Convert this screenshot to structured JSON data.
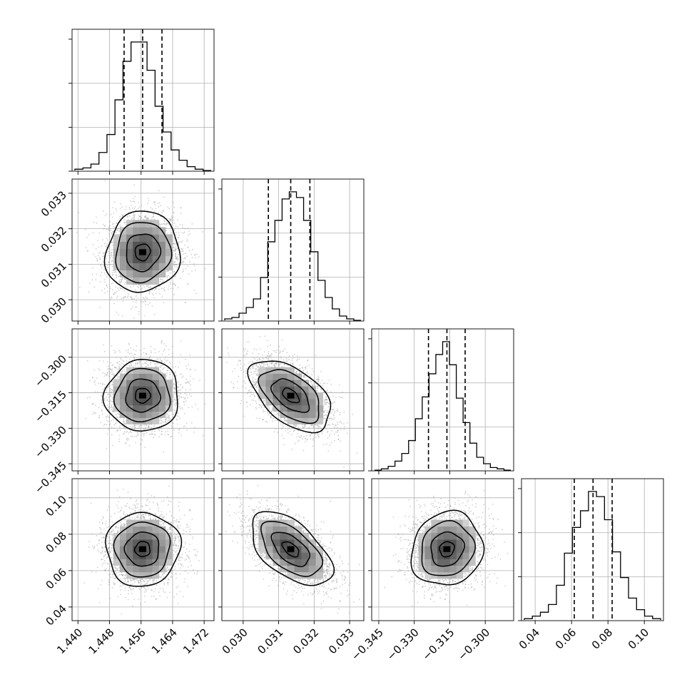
{
  "chart_data": {
    "type": "corner",
    "parameters": 4,
    "grid": true,
    "quantile_lines": "dashed",
    "axes": [
      {
        "range": [
          1.4385,
          1.4745
        ],
        "ticks": [
          1.44,
          1.448,
          1.456,
          1.464,
          1.472
        ],
        "tick_labels": [
          "1.440",
          "1.448",
          "1.456",
          "1.464",
          "1.472"
        ],
        "quantiles": [
          1.4517,
          1.4564,
          1.4613
        ]
      },
      {
        "range": [
          0.0294,
          0.0334
        ],
        "ticks": [
          0.03,
          0.031,
          0.032,
          0.033
        ],
        "tick_labels": [
          "0.030",
          "0.031",
          "0.032",
          "0.033"
        ],
        "quantiles": [
          0.03071,
          0.03134,
          0.03188
        ]
      },
      {
        "range": [
          -0.348,
          -0.288
        ],
        "ticks": [
          -0.345,
          -0.33,
          -0.315,
          -0.3
        ],
        "tick_labels": [
          "−0.345",
          "−0.330",
          "−0.315",
          "−0.300"
        ],
        "quantiles": [
          -0.324,
          -0.3162,
          -0.3085
        ]
      },
      {
        "range": [
          0.0325,
          0.1105
        ],
        "ticks": [
          0.04,
          0.06,
          0.08,
          0.1
        ],
        "tick_labels": [
          "0.04",
          "0.06",
          "0.08",
          "0.10"
        ],
        "quantiles": [
          0.0615,
          0.0718,
          0.0823
        ]
      }
    ],
    "marginals": [
      {
        "counts": [
          1,
          2,
          5,
          14,
          28,
          55,
          85,
          100,
          100,
          78,
          50,
          30,
          16,
          8,
          3,
          1,
          0
        ]
      },
      {
        "counts": [
          1,
          2,
          5,
          9,
          15,
          30,
          55,
          70,
          85,
          90,
          86,
          70,
          48,
          28,
          16,
          8,
          3,
          1,
          0
        ]
      },
      {
        "counts": [
          0,
          1,
          3,
          7,
          13,
          23,
          40,
          57,
          75,
          90,
          100,
          82,
          56,
          37,
          21,
          10,
          5,
          2,
          1,
          0
        ]
      },
      {
        "counts": [
          1,
          3,
          6,
          12,
          27,
          52,
          72,
          85,
          100,
          96,
          78,
          53,
          33,
          17,
          8,
          3,
          1
        ]
      }
    ],
    "pairs": [
      {
        "row": 1,
        "col": 0,
        "rho": 0.06
      },
      {
        "row": 2,
        "col": 0,
        "rho": 0.03
      },
      {
        "row": 2,
        "col": 1,
        "rho": -0.52
      },
      {
        "row": 3,
        "col": 0,
        "rho": 0.02
      },
      {
        "row": 3,
        "col": 1,
        "rho": -0.55
      },
      {
        "row": 3,
        "col": 2,
        "rho": 0.1
      }
    ]
  }
}
